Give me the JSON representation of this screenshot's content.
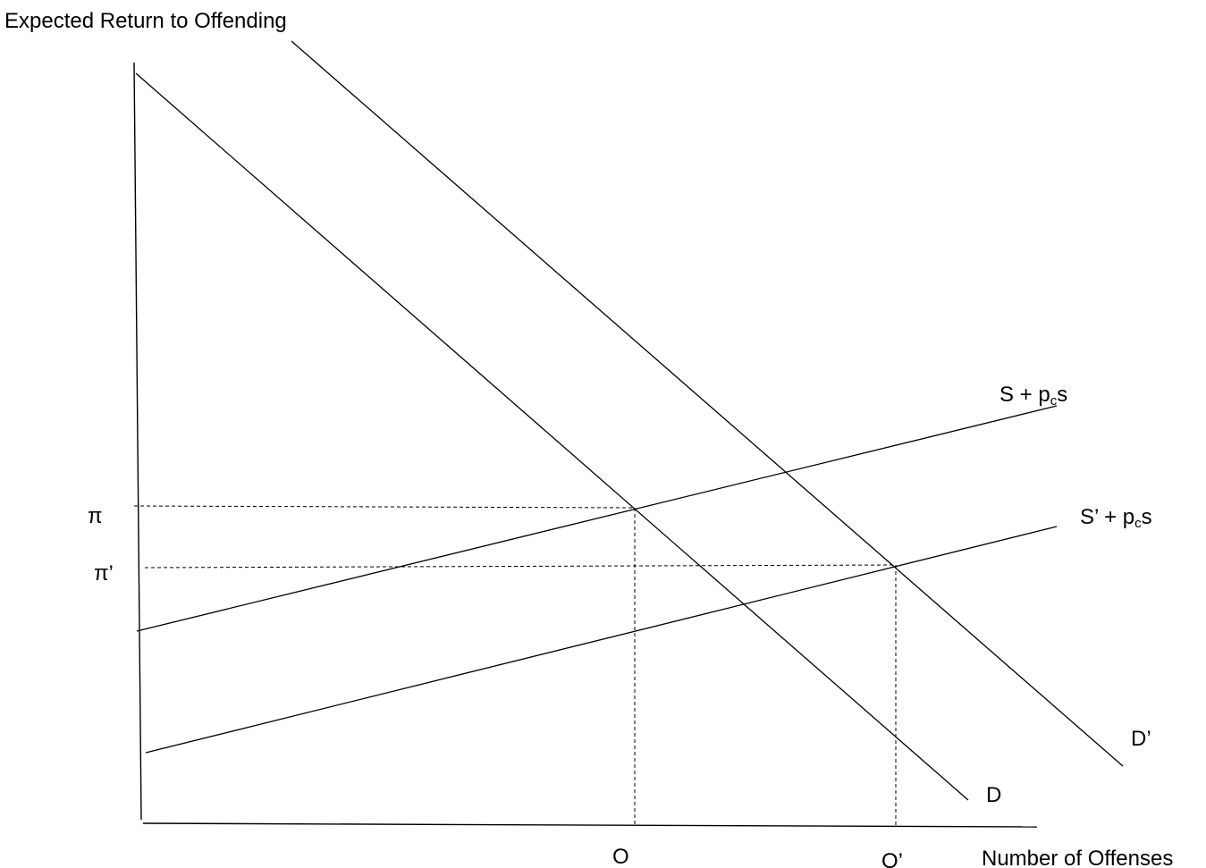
{
  "axes": {
    "y_label": "Expected Return to Offending",
    "x_label": "Number of Offenses"
  },
  "curves": {
    "demand": "D",
    "demand_shifted": "D’",
    "supply": {
      "main": "S + p",
      "sub": "c",
      "tail": "s"
    },
    "supply_shifted": {
      "main": "S’ + p",
      "sub": "c",
      "tail": "s"
    }
  },
  "equilibria": {
    "price": "π",
    "price_shifted": "π’",
    "quantity": "O",
    "quantity_shifted": "O’"
  }
}
